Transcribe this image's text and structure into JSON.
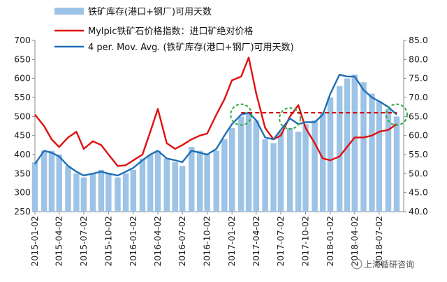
{
  "chart_data": {
    "type": "bar+line",
    "title": "",
    "xlabel": "",
    "ylabel": "",
    "ylabel_right": "",
    "ylim": [
      250,
      700
    ],
    "ylim_right": [
      40,
      85
    ],
    "y_ticks": [
      "250",
      "300",
      "350",
      "400",
      "450",
      "500",
      "550",
      "600",
      "650",
      "700"
    ],
    "y_ticks_right": [
      "40.0",
      "45.0",
      "50.0",
      "55.0",
      "60.0",
      "65.0",
      "70.0",
      "75.0",
      "80.0",
      "85.0"
    ],
    "x_range": [
      "2015-01-02",
      "2018-10-01"
    ],
    "x_tick_labels": [
      "2015-01-02",
      "2015-04-02",
      "2015-07-02",
      "2015-10-02",
      "2016-01-02",
      "2016-04-02",
      "2016-07-02",
      "2016-10-02",
      "2017-01-02",
      "2017-04-02",
      "2017-07-02",
      "2017-10-02",
      "2018-01-02",
      "2018-04-02",
      "2018-07-02"
    ],
    "grid": false,
    "legend_position": "top-left",
    "series": [
      {
        "name": "铁矿库存(港口+钢厂)可用天数",
        "kind": "bar",
        "axis": "right",
        "color": "#9dc3e6",
        "x": [
          "2015-01-02",
          "2015-02-05",
          "2015-03-05",
          "2015-04-02",
          "2015-05-05",
          "2015-06-05",
          "2015-07-02",
          "2015-08-05",
          "2015-09-05",
          "2015-10-02",
          "2015-11-05",
          "2015-12-05",
          "2016-01-02",
          "2016-02-05",
          "2016-03-05",
          "2016-04-02",
          "2016-05-05",
          "2016-06-05",
          "2016-07-02",
          "2016-08-05",
          "2016-09-05",
          "2016-10-02",
          "2016-11-05",
          "2016-12-05",
          "2017-01-02",
          "2017-02-05",
          "2017-03-05",
          "2017-04-02",
          "2017-05-05",
          "2017-06-05",
          "2017-07-02",
          "2017-08-05",
          "2017-09-05",
          "2017-10-02",
          "2017-11-05",
          "2017-12-05",
          "2018-01-02",
          "2018-02-05",
          "2018-03-05",
          "2018-04-02",
          "2018-05-05",
          "2018-06-05",
          "2018-07-02",
          "2018-08-05",
          "2018-09-05"
        ],
        "values": [
          53,
          56,
          56,
          55,
          52,
          50,
          49,
          50,
          51,
          50,
          49,
          50,
          51,
          54,
          55,
          56,
          54,
          53,
          52,
          57,
          56,
          55,
          56,
          59,
          62,
          65,
          66,
          64,
          59,
          58,
          61,
          62,
          61,
          63,
          64,
          66,
          70,
          73,
          75,
          76,
          74,
          71,
          69,
          67,
          65
        ]
      },
      {
        "name": "Mylpic铁矿石价格指数：进口矿绝对价格",
        "kind": "line",
        "axis": "left",
        "color": "#e01010",
        "x": [
          "2015-01-02",
          "2015-02-05",
          "2015-03-05",
          "2015-04-02",
          "2015-05-05",
          "2015-06-05",
          "2015-07-02",
          "2015-08-05",
          "2015-09-05",
          "2015-10-02",
          "2015-11-05",
          "2015-12-05",
          "2016-01-02",
          "2016-02-05",
          "2016-03-05",
          "2016-04-02",
          "2016-05-05",
          "2016-06-05",
          "2016-07-02",
          "2016-08-05",
          "2016-09-05",
          "2016-10-02",
          "2016-11-05",
          "2016-12-05",
          "2017-01-02",
          "2017-02-05",
          "2017-03-05",
          "2017-04-02",
          "2017-05-05",
          "2017-06-05",
          "2017-07-02",
          "2017-08-05",
          "2017-09-05",
          "2017-10-02",
          "2017-11-05",
          "2017-12-05",
          "2018-01-02",
          "2018-02-05",
          "2018-03-05",
          "2018-04-02",
          "2018-05-05",
          "2018-06-05",
          "2018-07-02",
          "2018-08-05",
          "2018-09-05"
        ],
        "values": [
          505,
          475,
          440,
          420,
          445,
          460,
          415,
          435,
          425,
          400,
          370,
          372,
          385,
          400,
          460,
          520,
          430,
          415,
          425,
          440,
          450,
          455,
          505,
          545,
          595,
          605,
          655,
          560,
          470,
          440,
          450,
          500,
          530,
          470,
          430,
          390,
          385,
          395,
          420,
          445,
          445,
          450,
          460,
          465,
          480
        ]
      },
      {
        "name": "4 per. Mov. Avg. (铁矿库存(港口+钢厂)可用天数)",
        "kind": "line",
        "axis": "right",
        "color": "#1f6fb5",
        "x": [
          "2015-01-02",
          "2015-02-05",
          "2015-03-05",
          "2015-04-02",
          "2015-05-05",
          "2015-06-05",
          "2015-07-02",
          "2015-08-05",
          "2015-09-05",
          "2015-10-02",
          "2015-11-05",
          "2015-12-05",
          "2016-01-02",
          "2016-02-05",
          "2016-03-05",
          "2016-04-02",
          "2016-05-05",
          "2016-06-05",
          "2016-07-02",
          "2016-08-05",
          "2016-09-05",
          "2016-10-02",
          "2016-11-05",
          "2016-12-05",
          "2017-01-02",
          "2017-02-05",
          "2017-03-05",
          "2017-04-02",
          "2017-05-05",
          "2017-06-05",
          "2017-07-02",
          "2017-08-05",
          "2017-09-05",
          "2017-10-02",
          "2017-11-05",
          "2017-12-05",
          "2018-01-02",
          "2018-02-05",
          "2018-03-05",
          "2018-04-02",
          "2018-05-05",
          "2018-06-05",
          "2018-07-02",
          "2018-08-05",
          "2018-09-05"
        ],
        "values": [
          52.5,
          56,
          55.5,
          54.5,
          52,
          50.5,
          49.5,
          50,
          50.5,
          50,
          49.5,
          50.5,
          51.5,
          53.5,
          55,
          56,
          54,
          53.5,
          53,
          56,
          55.5,
          55,
          56.5,
          60,
          63,
          65.5,
          66,
          64,
          59.5,
          59,
          61.5,
          64.5,
          63,
          63.5,
          63.5,
          65.5,
          71,
          76,
          75.5,
          75.5,
          72,
          70,
          69,
          67.5,
          65.5
        ]
      }
    ],
    "annotations": [
      {
        "kind": "circle",
        "series": "4 per. Mov. Avg. (铁矿库存(港口+钢厂)可用天数)",
        "x": "2017-02-05",
        "y": 65.5
      },
      {
        "kind": "circle",
        "series": "4 per. Mov. Avg. (铁矿库存(港口+钢厂)可用天数)",
        "x": "2017-08-05",
        "y": 64.5
      },
      {
        "kind": "circle",
        "series": "4 per. Mov. Avg. (铁矿库存(港口+钢厂)可用天数)",
        "x": "2018-09-05",
        "y": 65.5
      },
      {
        "kind": "dashed-line",
        "axis": "right",
        "from": "2017-02-05",
        "to": "2018-09-05",
        "y": 66,
        "color": "#cc0000"
      }
    ],
    "watermark": "上海循研咨询"
  }
}
